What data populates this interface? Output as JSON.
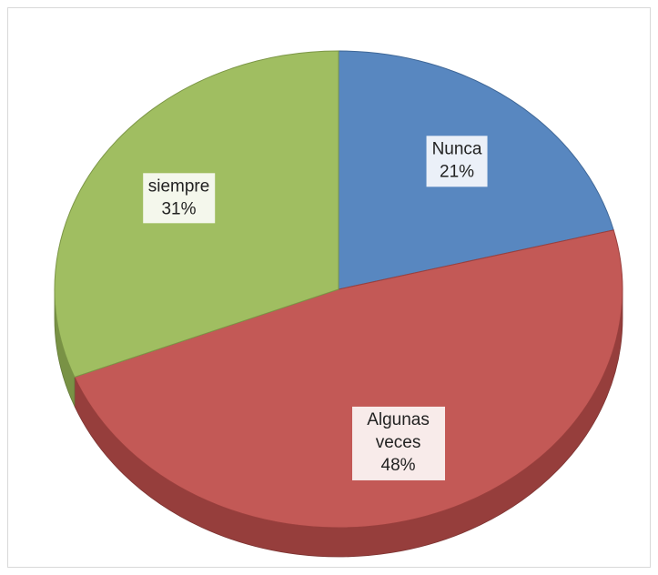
{
  "chart_data": {
    "type": "pie",
    "categories": [
      "Nunca",
      "Algunas veces",
      "siempre"
    ],
    "values": [
      21,
      48,
      31
    ],
    "value_labels": [
      "21%",
      "48%",
      "31%"
    ],
    "colors": [
      "#4f81bd",
      "#c0504d",
      "#9bbb59"
    ]
  }
}
